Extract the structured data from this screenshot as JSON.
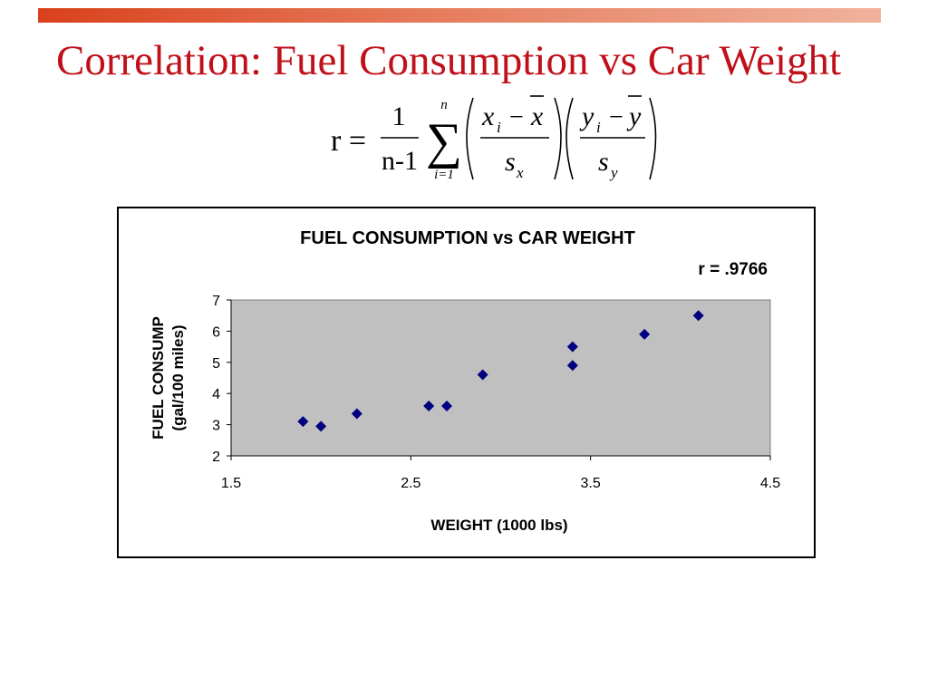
{
  "slide": {
    "title": "Correlation: Fuel Consumption vs Car Weight"
  },
  "formula": {
    "lhs": "r =",
    "fraction_numerator": "1",
    "fraction_denominator": "n-1",
    "sum_upper": "n",
    "sum_lower": "i=1",
    "x_term": "x",
    "x_sub": "i",
    "x_bar": "x",
    "x_sd": "s",
    "x_sd_sub": "x",
    "y_term": "y",
    "y_sub": "i",
    "y_bar": "y",
    "y_sd": "s",
    "y_sd_sub": "y",
    "minus": "−"
  },
  "chart_data": {
    "type": "scatter",
    "title": "FUEL CONSUMPTION vs CAR WEIGHT",
    "annotation": "r = .9766",
    "xlabel": "WEIGHT (1000 lbs)",
    "ylabel_line1": "FUEL CONSUMP",
    "ylabel_line2": "(gal/100 miles)",
    "xlim": [
      1.5,
      4.5
    ],
    "ylim": [
      2,
      7
    ],
    "xticks": [
      "1.5",
      "2.5",
      "3.5",
      "4.5"
    ],
    "yticks": [
      "2",
      "3",
      "4",
      "5",
      "6",
      "7"
    ],
    "grid": false,
    "plot_background": "#c0c0c0",
    "marker_color": "#000080",
    "marker": "diamond",
    "points": [
      {
        "x": 1.9,
        "y": 3.1
      },
      {
        "x": 2.0,
        "y": 2.95
      },
      {
        "x": 2.2,
        "y": 3.35
      },
      {
        "x": 2.6,
        "y": 3.6
      },
      {
        "x": 2.7,
        "y": 3.6
      },
      {
        "x": 2.9,
        "y": 4.6
      },
      {
        "x": 3.4,
        "y": 5.5
      },
      {
        "x": 3.4,
        "y": 4.9
      },
      {
        "x": 3.8,
        "y": 5.9
      },
      {
        "x": 4.1,
        "y": 6.5
      }
    ]
  }
}
